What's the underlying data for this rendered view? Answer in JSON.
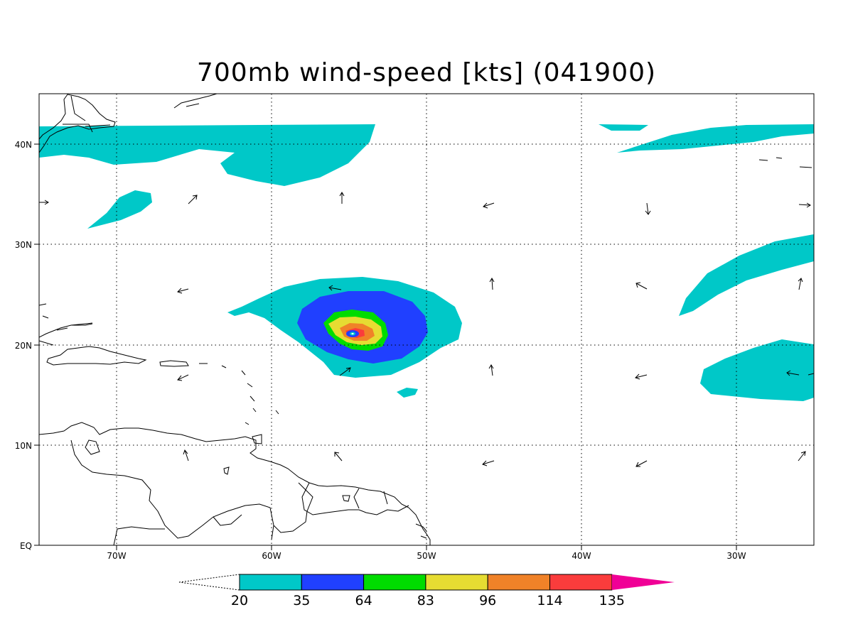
{
  "title": "700mb wind-speed [kts] (041900)",
  "map": {
    "lon_range": [
      -75,
      -25
    ],
    "lat_range": [
      0,
      45
    ],
    "x_ticks": [
      "70W",
      "60W",
      "50W",
      "40W",
      "30W"
    ],
    "y_ticks": [
      "40N",
      "30N",
      "20N",
      "10N",
      "EQ"
    ],
    "grid": true
  },
  "colorbar": {
    "levels": [
      "20",
      "35",
      "64",
      "83",
      "96",
      "114",
      "135"
    ],
    "colors": [
      "#00c8c8",
      "#2040ff",
      "#00dc00",
      "#e6dc32",
      "#f08228",
      "#fa3c3c",
      "#f00096"
    ],
    "below_min": "#ffffff"
  },
  "features": {
    "hurricane_center": "55W 21N",
    "fill_colors": {
      "cyan": "#00c8c8",
      "blue": "#2040ff",
      "green": "#00dc00",
      "yellow": "#e6dc32",
      "orange": "#f08228",
      "red": "#fa3c3c"
    }
  }
}
